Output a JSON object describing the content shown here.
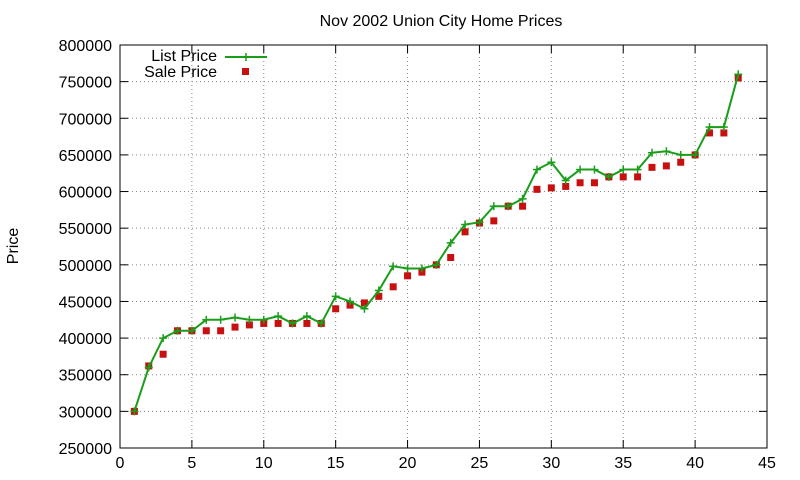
{
  "chart_data": {
    "type": "line",
    "title": "Nov 2002 Union City Home Prices",
    "xlabel": "",
    "ylabel": "Price",
    "xlim": [
      0,
      45
    ],
    "ylim": [
      250000,
      800000
    ],
    "xticks": [
      0,
      5,
      10,
      15,
      20,
      25,
      30,
      35,
      40,
      45
    ],
    "yticks": [
      250000,
      300000,
      350000,
      400000,
      450000,
      500000,
      550000,
      600000,
      650000,
      700000,
      750000,
      800000
    ],
    "grid": true,
    "legend_position": "top-left",
    "x": [
      1,
      2,
      3,
      4,
      5,
      6,
      7,
      8,
      9,
      10,
      11,
      12,
      13,
      14,
      15,
      16,
      17,
      18,
      19,
      20,
      21,
      22,
      23,
      24,
      25,
      26,
      27,
      28,
      29,
      30,
      31,
      32,
      33,
      34,
      35,
      36,
      37,
      38,
      39,
      40,
      41,
      42,
      43
    ],
    "series": [
      {
        "name": "List Price",
        "style": "linespoints",
        "color": "#1a9e1a",
        "values": [
          300000,
          360000,
          400000,
          410000,
          410000,
          425000,
          425000,
          428000,
          425000,
          425000,
          430000,
          420000,
          430000,
          420000,
          457000,
          450000,
          440000,
          465000,
          498000,
          495000,
          495000,
          500000,
          530000,
          555000,
          558000,
          580000,
          580000,
          590000,
          630000,
          640000,
          615000,
          630000,
          630000,
          620000,
          630000,
          630000,
          653000,
          655000,
          650000,
          650000,
          688000,
          688000,
          760000
        ]
      },
      {
        "name": "Sale Price",
        "style": "points",
        "color": "#c81010",
        "values": [
          300000,
          362000,
          378000,
          410000,
          410000,
          410000,
          410000,
          415000,
          418000,
          420000,
          420000,
          420000,
          420000,
          420000,
          440000,
          445000,
          448000,
          457000,
          470000,
          485000,
          490000,
          500000,
          510000,
          545000,
          557000,
          560000,
          580000,
          580000,
          603000,
          605000,
          607000,
          612000,
          612000,
          620000,
          620000,
          620000,
          633000,
          635000,
          640000,
          650000,
          680000,
          680000,
          755000
        ]
      }
    ]
  }
}
